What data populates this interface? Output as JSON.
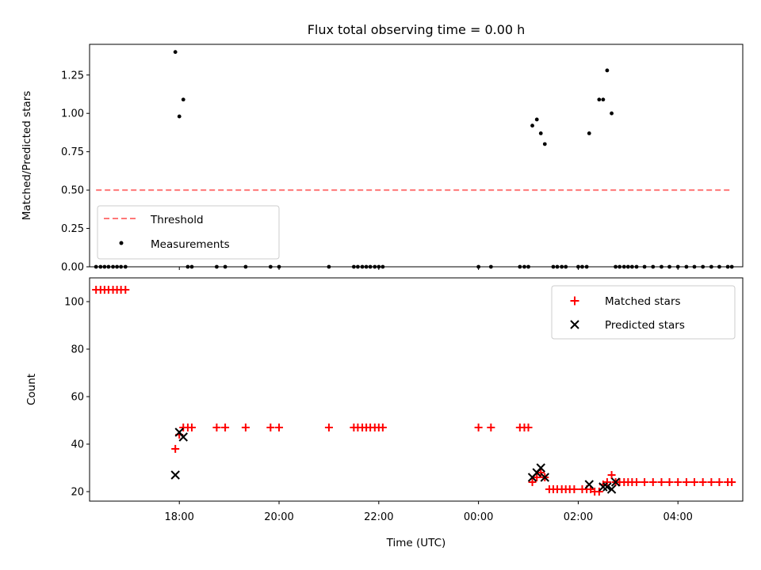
{
  "chart_data": [
    {
      "type": "scatter",
      "title": "Flux total observing time = 0.00 h",
      "xlabel": "",
      "ylabel": "Matched/Predicted stars",
      "xlim": [
        -0.8,
        12.3
      ],
      "ylim": [
        0,
        1.45
      ],
      "yticks": [
        0,
        0.25,
        0.5,
        0.75,
        1.0,
        1.25
      ],
      "ytick_labels": [
        "0.00",
        "0.25",
        "0.50",
        "0.75",
        "1.00",
        "1.25"
      ],
      "x_unit": "hours since 17:00 UTC",
      "legend": {
        "position": "lower-left",
        "entries": [
          "Threshold",
          "Measurements"
        ]
      },
      "series": [
        {
          "name": "Threshold",
          "style": "dashed-line",
          "color": "#ff7777",
          "x": [
            -0.67,
            12.08
          ],
          "y": [
            0.5,
            0.5
          ]
        },
        {
          "name": "Measurements",
          "style": "dot",
          "color": "#000000",
          "x": [
            0.92,
            1.0,
            1.08,
            8.08,
            8.17,
            8.25,
            8.33,
            9.22,
            9.42,
            9.5,
            9.58,
            9.67,
            9.75,
            -0.67,
            -0.58,
            -0.5,
            -0.42,
            -0.33,
            -0.25,
            -0.17,
            -0.08,
            1.17,
            1.25,
            1.75,
            1.92,
            2.33,
            2.83,
            3.0,
            4.0,
            4.5,
            4.58,
            4.67,
            4.75,
            4.83,
            4.92,
            5.0,
            5.08,
            7.0,
            7.25,
            7.83,
            7.92,
            8.0,
            8.5,
            8.58,
            8.67,
            8.75,
            9.0,
            9.08,
            9.17,
            9.83,
            9.92,
            10.0,
            10.08,
            10.17,
            10.33,
            10.5,
            10.67,
            10.83,
            11.0,
            11.17,
            11.33,
            11.5,
            11.67,
            11.83,
            12.0,
            12.08
          ],
          "y": [
            1.4,
            0.98,
            1.09,
            0.92,
            0.96,
            0.87,
            0.8,
            0.87,
            1.09,
            1.09,
            1.28,
            1.0,
            0.0,
            0,
            0,
            0,
            0,
            0,
            0,
            0,
            0,
            0,
            0,
            0,
            0,
            0,
            0,
            0,
            0,
            0,
            0,
            0,
            0,
            0,
            0,
            0,
            0,
            0,
            0,
            0,
            0,
            0,
            0,
            0,
            0,
            0,
            0,
            0,
            0,
            0,
            0,
            0,
            0,
            0,
            0,
            0,
            0,
            0,
            0,
            0,
            0,
            0,
            0,
            0,
            0,
            0
          ]
        }
      ]
    },
    {
      "type": "scatter",
      "title": "",
      "xlabel": "Time (UTC)",
      "ylabel": "Count",
      "xlim": [
        -0.8,
        12.3
      ],
      "ylim": [
        16,
        110
      ],
      "yticks": [
        20,
        40,
        60,
        80,
        100
      ],
      "ytick_labels": [
        "20",
        "40",
        "60",
        "80",
        "100"
      ],
      "xticks": [
        1,
        3,
        5,
        7,
        9,
        11
      ],
      "xtick_labels": [
        "18:00",
        "20:00",
        "22:00",
        "00:00",
        "02:00",
        "04:00"
      ],
      "x_unit": "hours since 17:00 UTC",
      "legend": {
        "position": "upper-right",
        "entries": [
          "Matched stars",
          "Predicted stars"
        ]
      },
      "series": [
        {
          "name": "Matched stars",
          "marker": "plus",
          "color": "#ff0000",
          "x": [
            -0.67,
            -0.58,
            -0.5,
            -0.42,
            -0.33,
            -0.25,
            -0.17,
            -0.08,
            0.92,
            1.0,
            1.08,
            1.17,
            1.25,
            1.75,
            1.92,
            2.33,
            2.83,
            3.0,
            4.0,
            4.5,
            4.58,
            4.67,
            4.75,
            4.83,
            4.92,
            5.0,
            5.08,
            7.0,
            7.25,
            7.83,
            7.92,
            8.0,
            8.08,
            8.17,
            8.25,
            8.33,
            8.42,
            8.5,
            8.58,
            8.67,
            8.75,
            8.83,
            8.92,
            9.08,
            9.17,
            9.25,
            9.33,
            9.42,
            9.5,
            9.58,
            9.67,
            9.75,
            9.83,
            9.92,
            10.0,
            10.08,
            10.17,
            10.33,
            10.5,
            10.67,
            10.83,
            11.0,
            11.17,
            11.33,
            11.5,
            11.67,
            11.83,
            12.0,
            12.08
          ],
          "y": [
            105,
            105,
            105,
            105,
            105,
            105,
            105,
            105,
            38,
            44,
            47,
            47,
            47,
            47,
            47,
            47,
            47,
            47,
            47,
            47,
            47,
            47,
            47,
            47,
            47,
            47,
            47,
            47,
            47,
            47,
            47,
            47,
            24,
            26,
            28,
            26,
            21,
            21,
            21,
            21,
            21,
            21,
            21,
            21,
            21,
            21,
            20,
            20,
            23,
            24,
            27,
            24,
            24,
            24,
            24,
            24,
            24,
            24,
            24,
            24,
            24,
            24,
            24,
            24,
            24,
            24,
            24,
            24,
            24
          ]
        },
        {
          "name": "Predicted stars",
          "marker": "x",
          "color": "#000000",
          "x": [
            0.92,
            1.0,
            1.08,
            9.22,
            8.08,
            8.17,
            8.25,
            8.33,
            9.5,
            9.58,
            9.67,
            9.75
          ],
          "y": [
            27,
            45,
            43,
            23,
            26,
            28,
            30,
            26,
            22,
            22,
            21,
            24
          ]
        }
      ]
    }
  ]
}
